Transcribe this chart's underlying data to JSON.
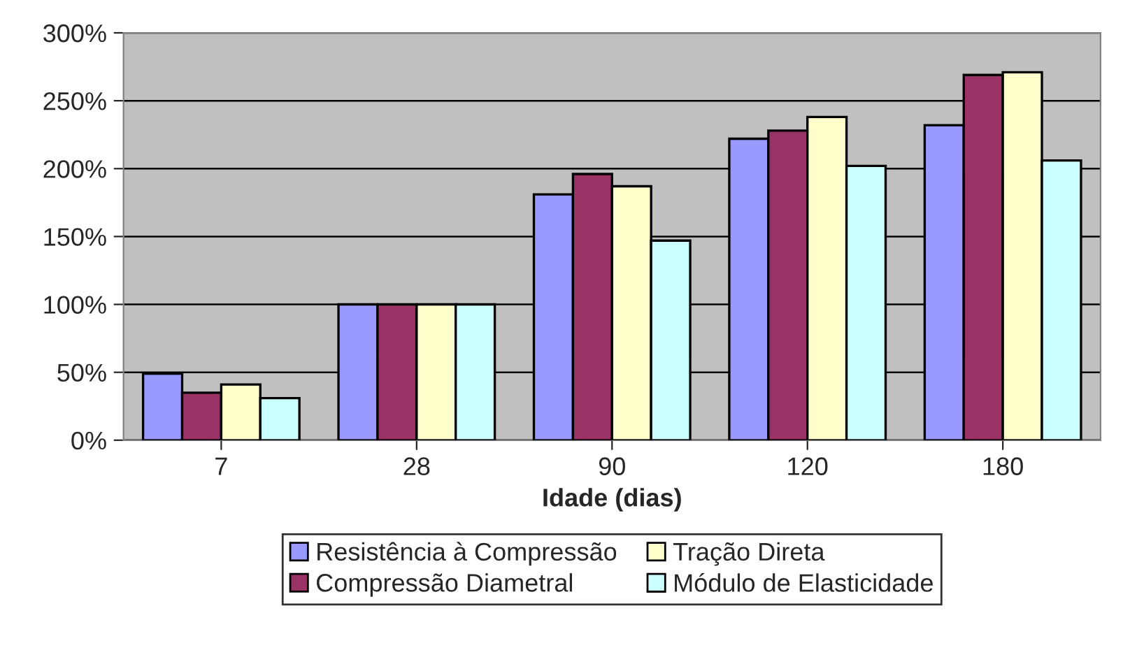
{
  "chart_data": {
    "type": "bar",
    "xlabel": "Idade (dias)",
    "categories": [
      "7",
      "28",
      "90",
      "120",
      "180"
    ],
    "series": [
      {
        "name": "Resistência à Compressão",
        "color": "#9999ff",
        "values": [
          49,
          100,
          181,
          222,
          232
        ]
      },
      {
        "name": "Compressão Diametral",
        "color": "#993366",
        "values": [
          35,
          100,
          196,
          228,
          269
        ]
      },
      {
        "name": "Tração Direta",
        "color": "#ffffcc",
        "values": [
          41,
          100,
          187,
          238,
          271
        ]
      },
      {
        "name": "Módulo de Elasticidade",
        "color": "#ccffff",
        "values": [
          31,
          100,
          147,
          202,
          206
        ]
      }
    ],
    "ylim": [
      0,
      300
    ],
    "yticks": [
      {
        "value": 0,
        "label": "0%"
      },
      {
        "value": 50,
        "label": "50%"
      },
      {
        "value": 100,
        "label": "100%"
      },
      {
        "value": 150,
        "label": "150%"
      },
      {
        "value": 200,
        "label": "200%"
      },
      {
        "value": 250,
        "label": "250%"
      },
      {
        "value": 300,
        "label": "300%"
      }
    ],
    "grid": "y",
    "legend": "bottom"
  }
}
